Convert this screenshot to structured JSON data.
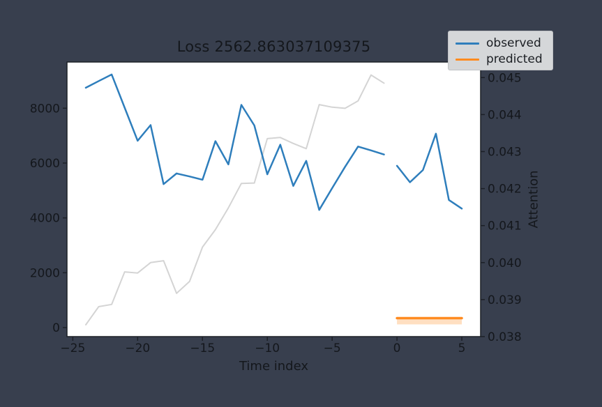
{
  "title": "Loss 2562.863037109375",
  "colors": {
    "background": "#383f4e",
    "plot_background": "#ffffff",
    "text": "#14171c",
    "spine": "#1c2027",
    "legend_bg": "#d5d7d9",
    "legend_border": "#bfc1c4",
    "observed": "#2e7ebc",
    "predicted": "#ff8b20",
    "attention_line": "#d4d4d4"
  },
  "chart_data": {
    "type": "line",
    "title": "Loss 2562.863037109375",
    "xlabel": "Time index",
    "ylabel_right": "Attention",
    "grid": false,
    "legend_position": "upper right, outside axes",
    "xlim": [
      -25.45,
      6.45
    ],
    "ylim_left": [
      -330,
      9684
    ],
    "ylim_right": [
      0.038,
      0.04542
    ],
    "x_ticks": [
      -25,
      -20,
      -15,
      -10,
      -5,
      0,
      5
    ],
    "x_tick_labels": [
      "−25",
      "−20",
      "−15",
      "−10",
      "−5",
      "0",
      "5"
    ],
    "y_ticks_left": [
      0,
      2000,
      4000,
      6000,
      8000
    ],
    "y_tick_labels_left": [
      "0",
      "2000",
      "4000",
      "6000",
      "8000"
    ],
    "y_ticks_right": [
      0.038,
      0.039,
      0.04,
      0.041,
      0.042,
      0.043,
      0.044,
      0.045
    ],
    "y_tick_labels_right": [
      "0.038",
      "0.039",
      "0.040",
      "0.041",
      "0.042",
      "0.043",
      "0.044",
      "0.045"
    ],
    "series": [
      {
        "name": "observed",
        "color": "#2e7ebc",
        "axis": "left",
        "z": 2,
        "width": 2.5,
        "segments": [
          [
            [
              -24,
              8745
            ],
            [
              -23,
              8990
            ],
            [
              -22,
              9230
            ],
            [
              -21,
              8020
            ],
            [
              -20,
              6815
            ],
            [
              -19,
              7385
            ],
            [
              -18,
              5230
            ],
            [
              -17,
              5620
            ],
            [
              -16,
              5510
            ],
            [
              -15,
              5390
            ],
            [
              -14,
              6800
            ],
            [
              -13,
              5950
            ],
            [
              -12,
              8120
            ],
            [
              -11,
              7370
            ],
            [
              -10,
              5590
            ],
            [
              -9,
              6670
            ],
            [
              -8,
              5165
            ],
            [
              -7,
              6080
            ],
            [
              -6,
              4290
            ],
            [
              -5,
              5085
            ],
            [
              -4,
              5865
            ],
            [
              -3,
              6600
            ],
            [
              -2,
              6460
            ],
            [
              -1,
              6310
            ]
          ],
          [
            [
              0,
              5900
            ],
            [
              1,
              5300
            ],
            [
              2,
              5745
            ],
            [
              3,
              7070
            ],
            [
              4,
              4655
            ],
            [
              5,
              4340
            ]
          ]
        ]
      },
      {
        "name": "predicted",
        "color": "#ff8b20",
        "axis": "right",
        "z": 3,
        "width": 3.5,
        "segments": [
          [
            [
              0,
              0.0385
            ],
            [
              5,
              0.0385
            ]
          ]
        ],
        "band": {
          "x0": 0,
          "x1": 5,
          "y0": 0.03833,
          "y1": 0.0385,
          "opacity": 0.28
        }
      },
      {
        "name": "attention",
        "color": "#d4d4d4",
        "axis": "right",
        "z": 1,
        "width": 2,
        "in_legend": false,
        "segments": [
          [
            [
              -24,
              0.03832
            ],
            [
              -23,
              0.03881
            ],
            [
              -22,
              0.03887
            ],
            [
              -21,
              0.03975
            ],
            [
              -20,
              0.03972
            ],
            [
              -19,
              0.04
            ],
            [
              -18,
              0.04005
            ],
            [
              -17,
              0.03917
            ],
            [
              -16,
              0.03949
            ],
            [
              -15,
              0.04042
            ],
            [
              -14,
              0.04089
            ],
            [
              -13,
              0.04148
            ],
            [
              -12,
              0.04214
            ],
            [
              -11,
              0.04215
            ],
            [
              -10,
              0.04335
            ],
            [
              -9,
              0.04338
            ],
            [
              -8,
              0.04322
            ],
            [
              -7,
              0.04308
            ],
            [
              -6,
              0.04427
            ],
            [
              -5,
              0.0442
            ],
            [
              -4,
              0.04417
            ],
            [
              -3,
              0.04437
            ],
            [
              -2,
              0.04507
            ],
            [
              -1,
              0.04485
            ]
          ]
        ]
      }
    ]
  }
}
